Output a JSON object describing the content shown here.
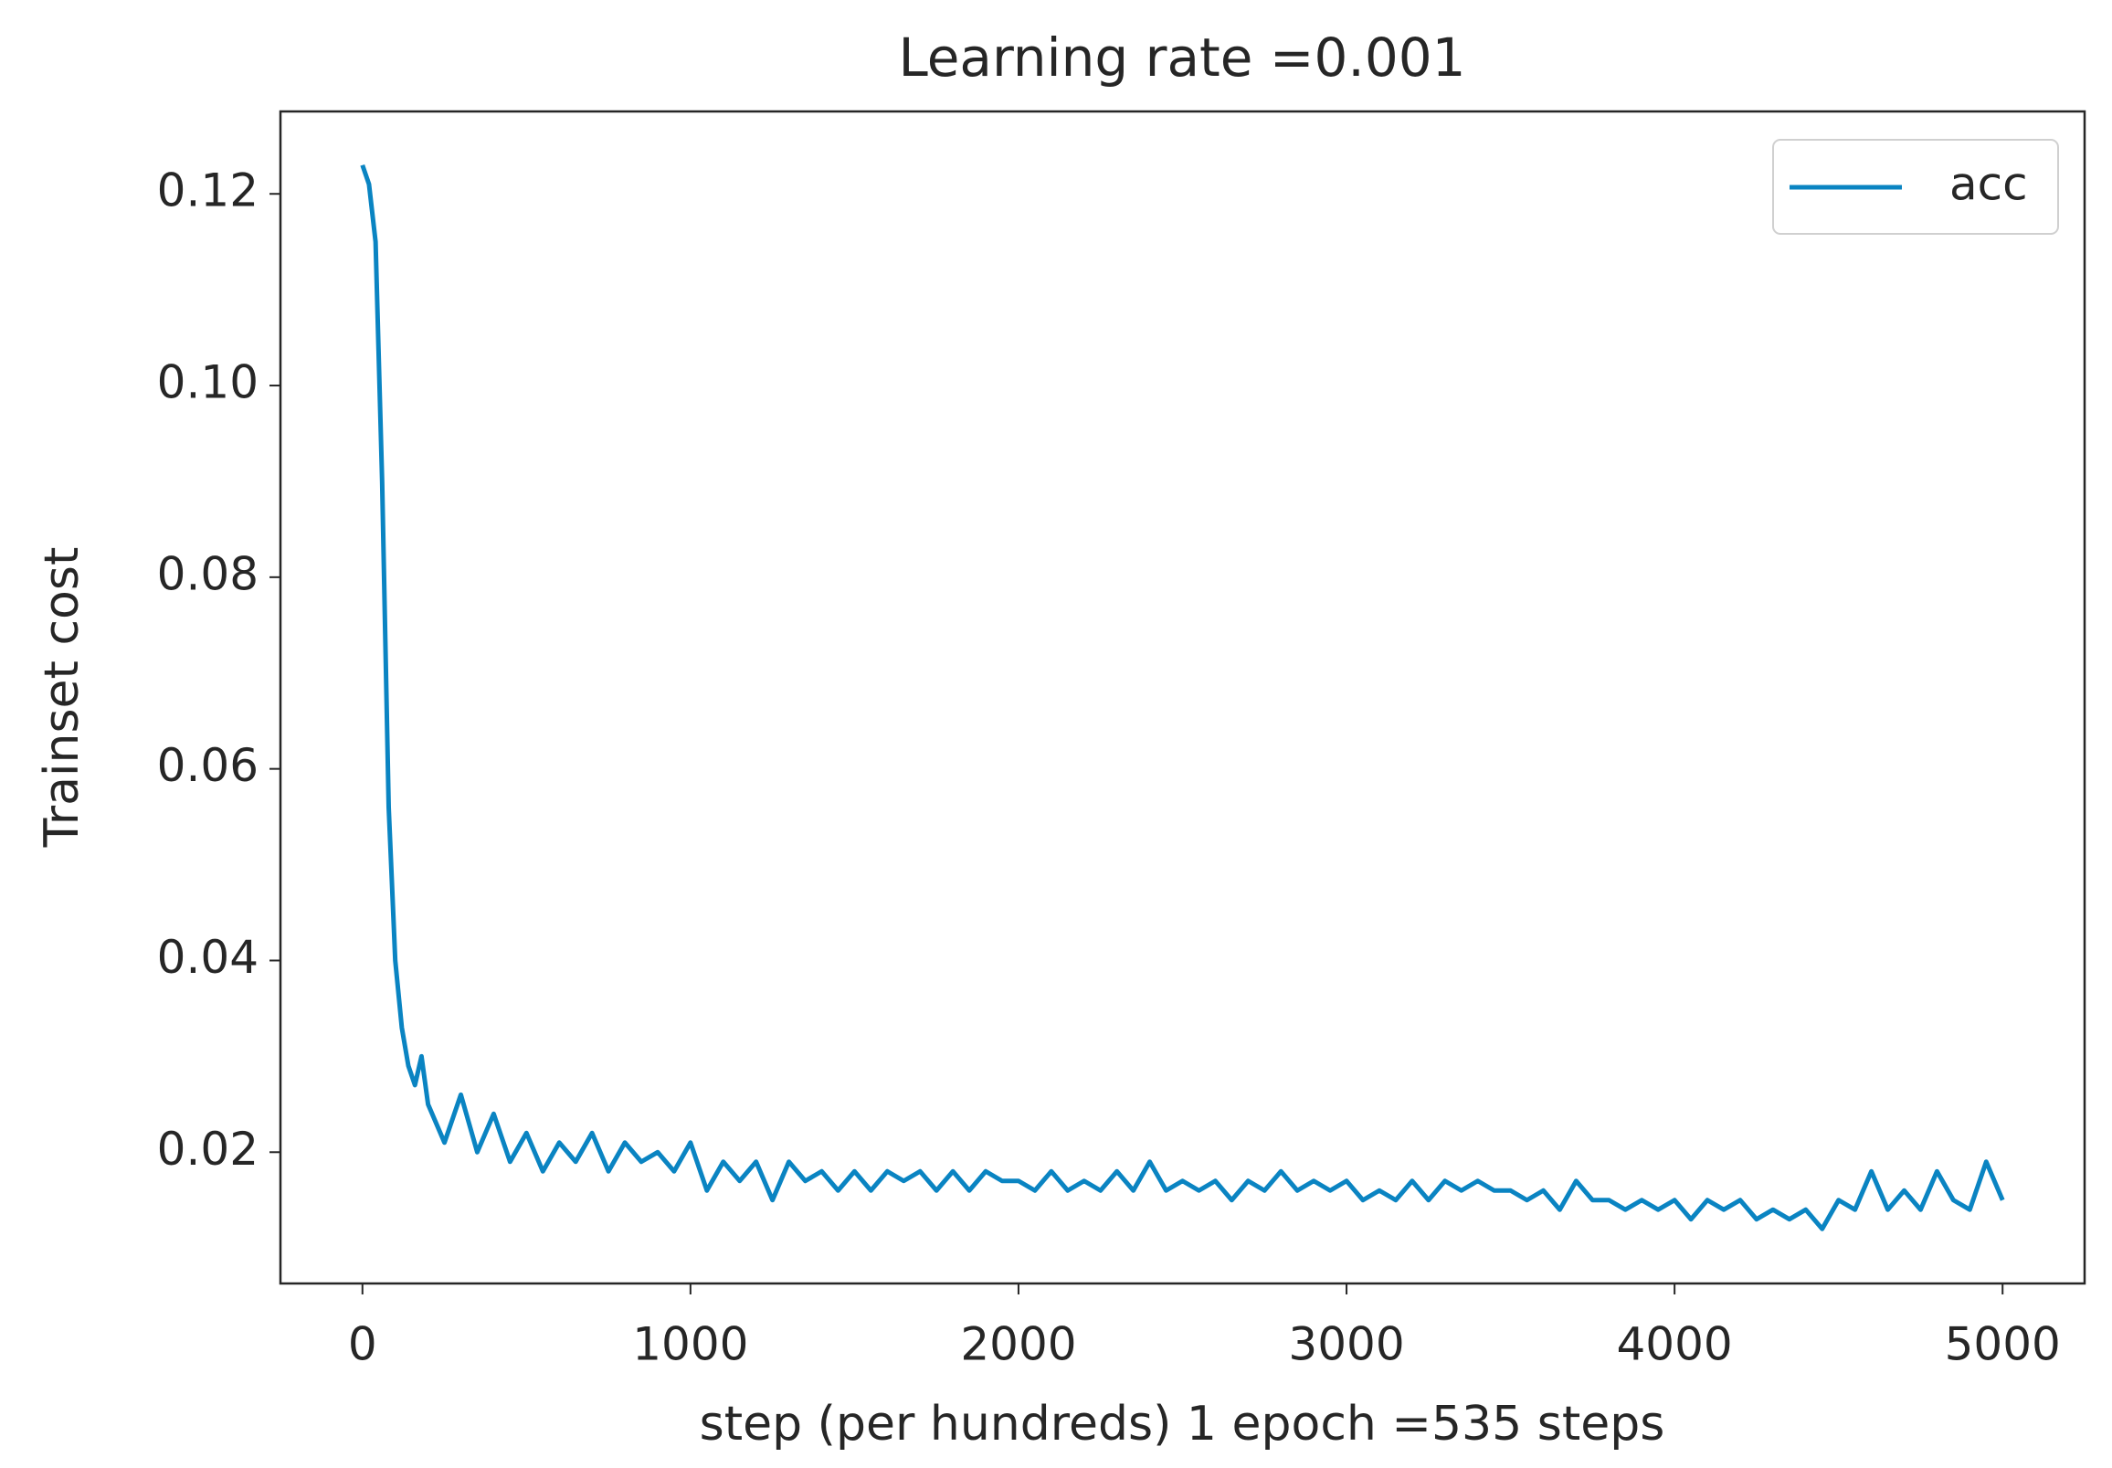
{
  "chart_data": {
    "type": "line",
    "title": "Learning rate =0.001",
    "xlabel": "step (per hundreds) 1 epoch =535 steps",
    "ylabel": "Trainset cost",
    "xlim": [
      -250,
      5250
    ],
    "ylim": [
      0.0063,
      0.1286
    ],
    "xticks": [
      0,
      1000,
      2000,
      3000,
      4000,
      5000
    ],
    "yticks": [
      0.02,
      0.04,
      0.06,
      0.08,
      {
        "value": 0.1,
        "label": "0.10"
      },
      0.12
    ],
    "legend": "upper right",
    "x": [
      0,
      20,
      40,
      60,
      80,
      100,
      120,
      140,
      160,
      180,
      200,
      250,
      300,
      350,
      400,
      450,
      500,
      550,
      600,
      650,
      700,
      750,
      800,
      850,
      900,
      950,
      1000,
      1050,
      1100,
      1150,
      1200,
      1250,
      1300,
      1350,
      1400,
      1450,
      1500,
      1550,
      1600,
      1650,
      1700,
      1750,
      1800,
      1850,
      1900,
      1950,
      2000,
      2050,
      2100,
      2150,
      2200,
      2250,
      2300,
      2350,
      2400,
      2450,
      2500,
      2550,
      2600,
      2650,
      2700,
      2750,
      2800,
      2850,
      2900,
      2950,
      3000,
      3050,
      3100,
      3150,
      3200,
      3250,
      3300,
      3350,
      3400,
      3450,
      3500,
      3550,
      3600,
      3650,
      3700,
      3750,
      3800,
      3850,
      3900,
      3950,
      4000,
      4050,
      4100,
      4150,
      4200,
      4250,
      4300,
      4350,
      4400,
      4450,
      4500,
      4550,
      4600,
      4650,
      4700,
      4750,
      4800,
      4850,
      4900,
      4950,
      5000
    ],
    "series": [
      {
        "name": "acc",
        "color": "#0a84c2",
        "values": [
          0.123,
          0.121,
          0.115,
          0.09,
          0.056,
          0.04,
          0.033,
          0.029,
          0.027,
          0.03,
          0.025,
          0.021,
          0.026,
          0.02,
          0.024,
          0.019,
          0.022,
          0.018,
          0.021,
          0.019,
          0.022,
          0.018,
          0.021,
          0.019,
          0.02,
          0.018,
          0.021,
          0.016,
          0.019,
          0.017,
          0.019,
          0.015,
          0.019,
          0.017,
          0.018,
          0.016,
          0.018,
          0.016,
          0.018,
          0.017,
          0.018,
          0.016,
          0.018,
          0.016,
          0.018,
          0.017,
          0.017,
          0.016,
          0.018,
          0.016,
          0.017,
          0.016,
          0.018,
          0.016,
          0.019,
          0.016,
          0.017,
          0.016,
          0.017,
          0.015,
          0.017,
          0.016,
          0.018,
          0.016,
          0.017,
          0.016,
          0.017,
          0.015,
          0.016,
          0.015,
          0.017,
          0.015,
          0.017,
          0.016,
          0.017,
          0.016,
          0.016,
          0.015,
          0.016,
          0.014,
          0.017,
          0.015,
          0.015,
          0.014,
          0.015,
          0.014,
          0.015,
          0.013,
          0.015,
          0.014,
          0.015,
          0.013,
          0.014,
          0.013,
          0.014,
          0.012,
          0.015,
          0.014,
          0.018,
          0.014,
          0.016,
          0.014,
          0.018,
          0.015,
          0.014,
          0.019,
          0.015
        ]
      }
    ]
  }
}
